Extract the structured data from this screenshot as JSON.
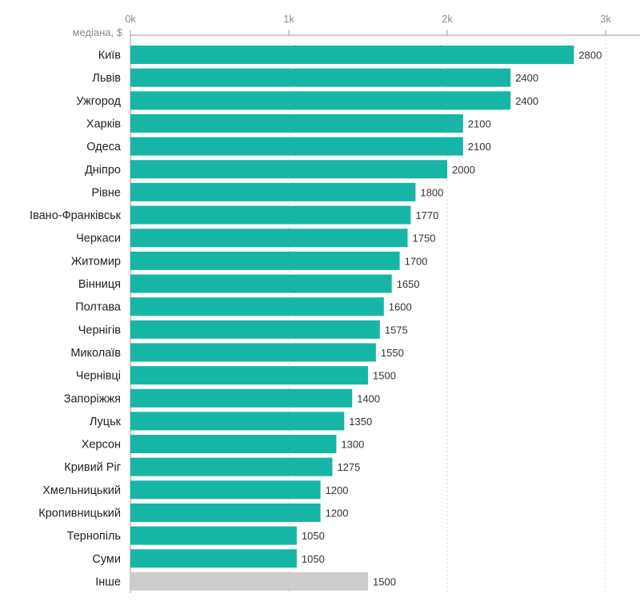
{
  "colors": {
    "bar": "#17b5a6",
    "other_bar": "#cccccc",
    "axis": "#9a9a9a",
    "grid": "#d4d4d4"
  },
  "chart_data": {
    "type": "bar",
    "orientation": "horizontal",
    "xlabel": "медіана, $",
    "xlim": [
      0,
      3000
    ],
    "x_ticks": [
      0,
      1000,
      2000,
      3000
    ],
    "x_tick_labels": [
      "0k",
      "1k",
      "2k",
      "3k"
    ],
    "grid": true,
    "categories": [
      "Київ",
      "Львів",
      "Ужгород",
      "Харків",
      "Одеса",
      "Дніпро",
      "Рівне",
      "Івано-Франківськ",
      "Черкаси",
      "Житомир",
      "Вінниця",
      "Полтава",
      "Чернігів",
      "Миколаїв",
      "Чернівці",
      "Запоріжжя",
      "Луцьк",
      "Херсон",
      "Кривий Ріг",
      "Хмельницький",
      "Кропивницький",
      "Тернопіль",
      "Суми",
      "Інше"
    ],
    "values": [
      2800,
      2400,
      2400,
      2100,
      2100,
      2000,
      1800,
      1770,
      1750,
      1700,
      1650,
      1600,
      1575,
      1550,
      1500,
      1400,
      1350,
      1300,
      1275,
      1200,
      1200,
      1050,
      1050,
      1500
    ],
    "highlight": [
      "teal",
      "teal",
      "teal",
      "teal",
      "teal",
      "teal",
      "teal",
      "teal",
      "teal",
      "teal",
      "teal",
      "teal",
      "teal",
      "teal",
      "teal",
      "teal",
      "teal",
      "teal",
      "teal",
      "teal",
      "teal",
      "teal",
      "teal",
      "grey"
    ]
  }
}
